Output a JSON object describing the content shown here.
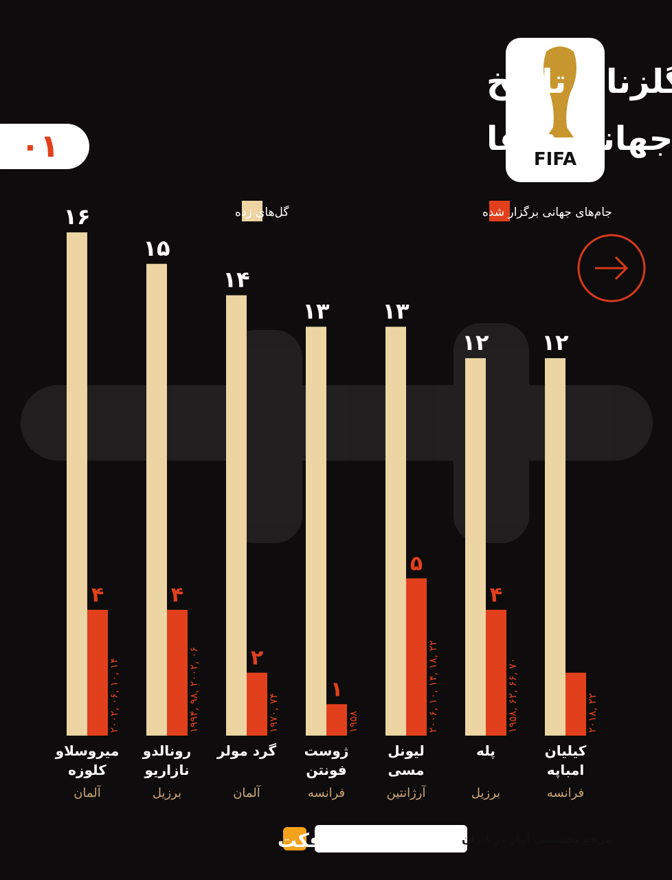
{
  "chart_data": {
    "type": "bar",
    "title": "برترین گلزنان تاریخ",
    "subtitle": "جام جهانی فیفا",
    "badge": "۰۱",
    "logo_text": "FIFA",
    "categories": [
      "میروسلاو\nکلوزه",
      "رونالدو\nنازاریو",
      "گرد مولر",
      "ژوست\nفونتن",
      "لیونل\nمسی",
      "پله",
      "کیلیان\nامباپه"
    ],
    "category_notes": [
      "آلمان",
      "برزیل",
      "آلمان",
      "فرانسه",
      "آرژانتین",
      "برزیل",
      "فرانسه"
    ],
    "series": [
      {
        "name": "گل‌های زده",
        "color": "#ecd5a3",
        "values": [
          16,
          15,
          14,
          13,
          13,
          12,
          12
        ],
        "value_labels": [
          "۱۶",
          "۱۵",
          "۱۴",
          "۱۳",
          "۱۳",
          "۱۲",
          "۱۲"
        ]
      },
      {
        "name": "جام‌های جهانی برگزار شده",
        "color": "#e2401c",
        "values": [
          4,
          4,
          2,
          1,
          5,
          4,
          2
        ],
        "value_labels": [
          "۴",
          "۴",
          "۲",
          "۱",
          "۵",
          "۴",
          null
        ],
        "annotations": [
          "۲۰۰۲, ۰۶, ۱۰, ۱۴",
          "۱۹۹۴, ۹۸, ۲۰۰۲, ۰۶",
          "۱۹۷۰, ۷۴",
          "۱۹۵۸",
          "۲۰۰۶, ۱۰, ۱۴, ۱۸, ۲۲",
          "۱۹۵۸, ۶۲, ۶۶, ۷۰",
          "۲۰۱۸, ۲۲"
        ]
      }
    ],
    "footer": "مرجع تخصصی آمار در ایران",
    "brand": "آمارفکت"
  }
}
